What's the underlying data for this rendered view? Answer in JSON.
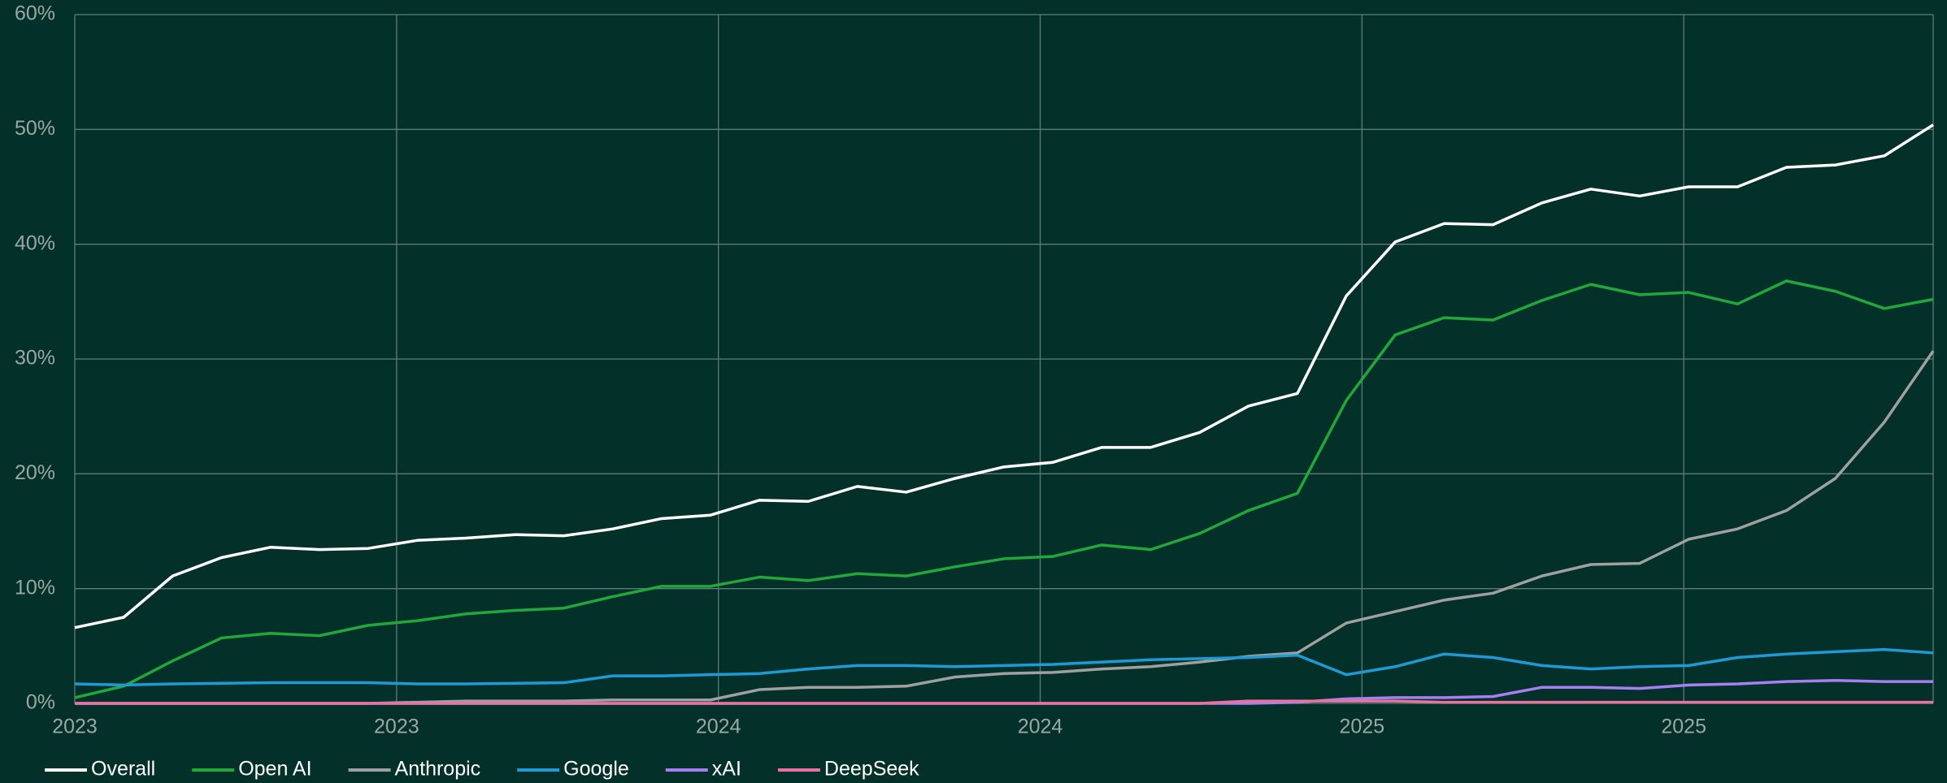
{
  "chart_data": {
    "type": "line",
    "x": [
      0,
      1,
      2,
      3,
      4,
      5,
      6,
      7,
      8,
      9,
      10,
      11,
      12,
      13,
      14,
      15,
      16,
      17,
      18,
      19,
      20,
      21,
      22,
      23,
      24,
      25,
      26,
      27,
      28,
      29,
      30,
      31,
      32,
      33,
      34,
      35,
      36,
      37,
      38
    ],
    "xlim": [
      0,
      38
    ],
    "xticks": [
      {
        "value": 0,
        "label": "2023"
      },
      {
        "value": 6.58,
        "label": "2023"
      },
      {
        "value": 13.16,
        "label": "2024"
      },
      {
        "value": 19.74,
        "label": "2024"
      },
      {
        "value": 26.32,
        "label": "2025"
      },
      {
        "value": 32.9,
        "label": "2025"
      }
    ],
    "ylim": [
      0,
      60
    ],
    "yticks": [
      {
        "value": 0,
        "label": "0%"
      },
      {
        "value": 10,
        "label": "10%"
      },
      {
        "value": 20,
        "label": "20%"
      },
      {
        "value": 30,
        "label": "30%"
      },
      {
        "value": 40,
        "label": "40%"
      },
      {
        "value": 50,
        "label": "50%"
      },
      {
        "value": 60,
        "label": "60%"
      }
    ],
    "grid": true,
    "legend": "bottom-left",
    "series": [
      {
        "name": "Overall",
        "color": "#ffffff",
        "values": [
          6.6,
          7.5,
          11.1,
          12.7,
          13.6,
          13.4,
          13.5,
          14.2,
          14.4,
          14.7,
          14.6,
          15.2,
          16.1,
          16.4,
          17.7,
          17.6,
          18.9,
          18.4,
          19.6,
          20.6,
          21.0,
          22.3,
          22.3,
          23.6,
          25.9,
          27.0,
          35.5,
          40.2,
          41.8,
          41.7,
          43.6,
          44.8,
          44.2,
          45.0,
          45.0,
          46.7,
          46.9,
          47.7,
          50.4
        ]
      },
      {
        "name": "Open AI",
        "color": "#22a83a",
        "values": [
          0.5,
          1.5,
          3.7,
          5.7,
          6.1,
          5.9,
          6.8,
          7.2,
          7.8,
          8.1,
          8.3,
          9.3,
          10.2,
          10.2,
          11.0,
          10.7,
          11.3,
          11.1,
          11.9,
          12.6,
          12.8,
          13.8,
          13.4,
          14.8,
          16.8,
          18.3,
          26.4,
          32.1,
          33.6,
          33.4,
          35.1,
          36.5,
          35.6,
          35.8,
          34.8,
          36.8,
          35.9,
          34.4,
          35.2
        ]
      },
      {
        "name": "Anthropic",
        "color": "#a0a0a0",
        "values": [
          0,
          0,
          0,
          0,
          0,
          0,
          0,
          0.1,
          0.2,
          0.2,
          0.2,
          0.3,
          0.3,
          0.3,
          1.2,
          1.4,
          1.4,
          1.5,
          2.3,
          2.6,
          2.7,
          3.0,
          3.2,
          3.6,
          4.1,
          4.4,
          7.0,
          8.0,
          9.0,
          9.6,
          11.1,
          12.1,
          12.2,
          14.3,
          15.2,
          16.8,
          19.6,
          24.5,
          30.7
        ]
      },
      {
        "name": "Google",
        "color": "#1e9ad6",
        "values": [
          1.7,
          1.6,
          1.7,
          1.75,
          1.8,
          1.8,
          1.8,
          1.7,
          1.7,
          1.75,
          1.8,
          2.4,
          2.4,
          2.5,
          2.6,
          3.0,
          3.3,
          3.3,
          3.2,
          3.3,
          3.4,
          3.6,
          3.8,
          3.9,
          4.0,
          4.2,
          2.5,
          3.2,
          4.3,
          4.0,
          3.3,
          3.0,
          3.2,
          3.3,
          4.0,
          4.3,
          4.5,
          4.7,
          4.4
        ]
      },
      {
        "name": "xAI",
        "color": "#a77ff0",
        "values": [
          0,
          0,
          0,
          0,
          0,
          0,
          0,
          0,
          0,
          0,
          0,
          0,
          0,
          0,
          0,
          0,
          0,
          0,
          0,
          0,
          0,
          0,
          0,
          0,
          0,
          0.1,
          0.4,
          0.5,
          0.5,
          0.6,
          1.4,
          1.4,
          1.3,
          1.6,
          1.7,
          1.9,
          2.0,
          1.9,
          1.9
        ]
      },
      {
        "name": "DeepSeek",
        "color": "#e8739e",
        "values": [
          0,
          0,
          0,
          0,
          0,
          0,
          0,
          0,
          0,
          0,
          0,
          0,
          0,
          0,
          0,
          0,
          0,
          0,
          0,
          0,
          0,
          0,
          0,
          0,
          0.2,
          0.2,
          0.2,
          0.2,
          0.1,
          0.1,
          0.1,
          0.1,
          0.1,
          0.1,
          0.1,
          0.1,
          0.1,
          0.1,
          0.1
        ]
      }
    ]
  }
}
